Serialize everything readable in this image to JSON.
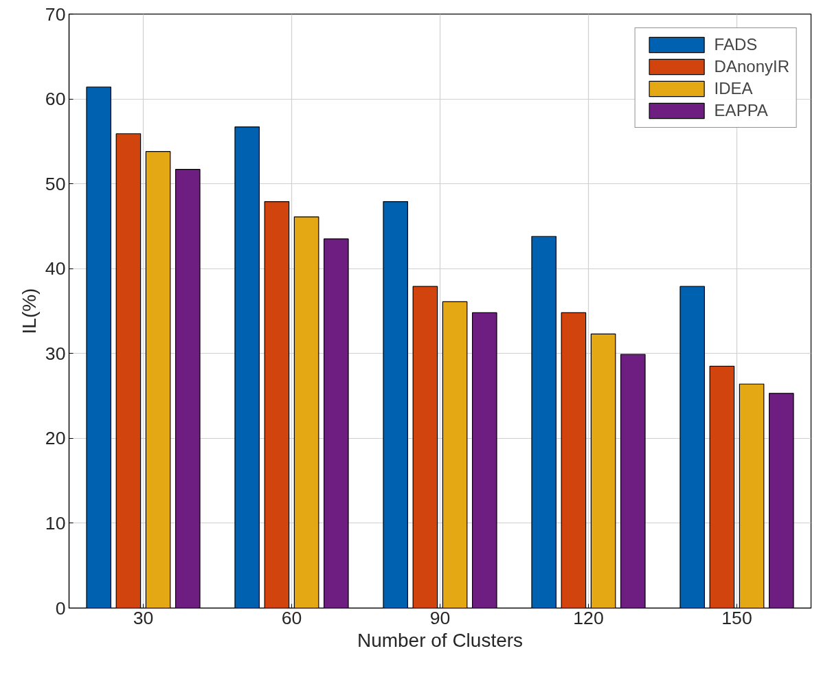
{
  "chart_data": {
    "type": "bar",
    "xlabel": "Number of Clusters",
    "ylabel": "IL(%)",
    "categories": [
      "30",
      "60",
      "90",
      "120",
      "150"
    ],
    "series": [
      {
        "name": "FADS",
        "color": "#0061b0",
        "values": [
          61.4,
          56.7,
          47.9,
          43.8,
          37.9
        ]
      },
      {
        "name": "DAnonyIR",
        "color": "#d2440e",
        "values": [
          55.9,
          47.9,
          37.9,
          34.8,
          28.5
        ]
      },
      {
        "name": "IDEA",
        "color": "#e5a815",
        "values": [
          53.8,
          46.1,
          36.1,
          32.3,
          26.4
        ]
      },
      {
        "name": "EAPPA",
        "color": "#6e1e80",
        "values": [
          51.7,
          43.5,
          34.8,
          29.9,
          25.3
        ]
      }
    ],
    "ylim": [
      0,
      70
    ],
    "yticks": [
      0,
      10,
      20,
      30,
      40,
      50,
      60,
      70
    ],
    "grid": true,
    "legend": "top right"
  }
}
